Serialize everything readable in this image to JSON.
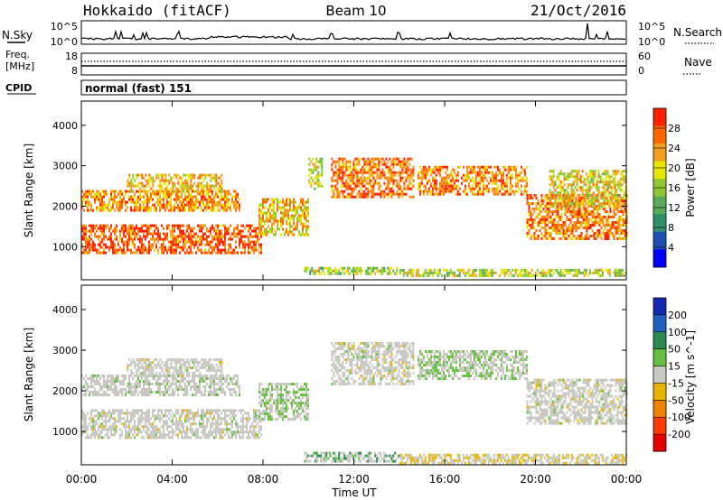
{
  "header": {
    "station": "Hokkaido (fitACF)",
    "beam": "Beam 10",
    "date": "21/Oct/2016"
  },
  "noise_panel": {
    "left_label": "N.Sky",
    "right_label": "N.Search",
    "tick_top": "10^5",
    "tick_bottom": "10^0"
  },
  "freq_panel": {
    "label_line1": "Freq.",
    "label_line2": "[MHz]",
    "tick_top": "18",
    "tick_bottom": "8",
    "right_label": "Nave",
    "right_tick_top": "60",
    "right_tick_bottom": "0"
  },
  "cpid": {
    "label": "CPID",
    "value": "normal (fast) 151"
  },
  "chart_data": [
    {
      "type": "heatmap",
      "title": "",
      "xlabel": "Time UT",
      "ylabel": "Slant Range [km]",
      "x_ticks": [
        "00:00",
        "04:00",
        "08:00",
        "12:00",
        "16:00",
        "20:00",
        "00:00"
      ],
      "x_range_hours": [
        0,
        24
      ],
      "y_ticks": [
        1000,
        2000,
        3000,
        4000
      ],
      "ylim": [
        180,
        4600
      ],
      "colorbar": {
        "label": "Power [dB]",
        "ticks": [
          4,
          8,
          12,
          16,
          20,
          24,
          28
        ],
        "range": [
          0,
          32
        ],
        "colors": [
          "#0000ff",
          "#1e4fb4",
          "#2f8f66",
          "#5aa85a",
          "#8cc832",
          "#e6e600",
          "#f0a01e",
          "#ff6600",
          "#ff2000"
        ]
      },
      "echo_bands": [
        {
          "t0": 0.0,
          "t1": 7.9,
          "r0": 850,
          "r1": 1550,
          "value": 27
        },
        {
          "t0": 0.0,
          "t1": 7.0,
          "r0": 1900,
          "r1": 2400,
          "value": 24
        },
        {
          "t0": 2.0,
          "t1": 6.2,
          "r0": 2350,
          "r1": 2800,
          "value": 22
        },
        {
          "t0": 7.8,
          "t1": 10.0,
          "r0": 1300,
          "r1": 2200,
          "value": 22
        },
        {
          "t0": 10.0,
          "t1": 10.6,
          "r0": 2400,
          "r1": 3200,
          "value": 18
        },
        {
          "t0": 11.0,
          "t1": 14.6,
          "r0": 2200,
          "r1": 3200,
          "value": 26
        },
        {
          "t0": 14.8,
          "t1": 19.6,
          "r0": 2300,
          "r1": 3000,
          "value": 25
        },
        {
          "t0": 19.6,
          "t1": 24.0,
          "r0": 1200,
          "r1": 2300,
          "value": 25
        },
        {
          "t0": 20.6,
          "t1": 24.0,
          "r0": 2000,
          "r1": 2900,
          "value": 20
        },
        {
          "t0": 9.8,
          "t1": 14.0,
          "r0": 300,
          "r1": 500,
          "value": 16
        },
        {
          "t0": 14.0,
          "t1": 24.0,
          "r0": 250,
          "r1": 450,
          "value": 18
        }
      ]
    },
    {
      "type": "heatmap",
      "title": "",
      "xlabel": "Time UT",
      "ylabel": "Slant Range [km]",
      "x_ticks": [
        "00:00",
        "04:00",
        "08:00",
        "12:00",
        "16:00",
        "20:00",
        "00:00"
      ],
      "x_range_hours": [
        0,
        24
      ],
      "y_ticks": [
        1000,
        2000,
        3000,
        4000
      ],
      "ylim": [
        180,
        4600
      ],
      "colorbar": {
        "label": "Velocity [m s^-1]",
        "ticks": [
          200,
          100,
          50,
          15,
          -15,
          -50,
          -100,
          -200
        ],
        "colors": [
          "#1428b4",
          "#2060c0",
          "#2a8a50",
          "#66c040",
          "#c8c8c0",
          "#e6b400",
          "#f08000",
          "#ff3c00",
          "#e60000"
        ]
      },
      "echo_bands": [
        {
          "t0": 0.0,
          "t1": 7.9,
          "r0": 850,
          "r1": 1550,
          "value": 0
        },
        {
          "t0": 0.0,
          "t1": 7.0,
          "r0": 1900,
          "r1": 2400,
          "value": 5
        },
        {
          "t0": 2.0,
          "t1": 6.2,
          "r0": 2350,
          "r1": 2800,
          "value": 0
        },
        {
          "t0": 7.8,
          "t1": 10.0,
          "r0": 1300,
          "r1": 2200,
          "value": 30
        },
        {
          "t0": 11.0,
          "t1": 14.6,
          "r0": 2200,
          "r1": 3200,
          "value": 0
        },
        {
          "t0": 14.8,
          "t1": 19.6,
          "r0": 2300,
          "r1": 3000,
          "value": 30
        },
        {
          "t0": 19.6,
          "t1": 24.0,
          "r0": 1200,
          "r1": 2300,
          "value": 0
        },
        {
          "t0": 9.8,
          "t1": 14.0,
          "r0": 300,
          "r1": 500,
          "value": 60
        },
        {
          "t0": 14.0,
          "t1": 24.0,
          "r0": 250,
          "r1": 450,
          "value": -30
        }
      ]
    }
  ]
}
